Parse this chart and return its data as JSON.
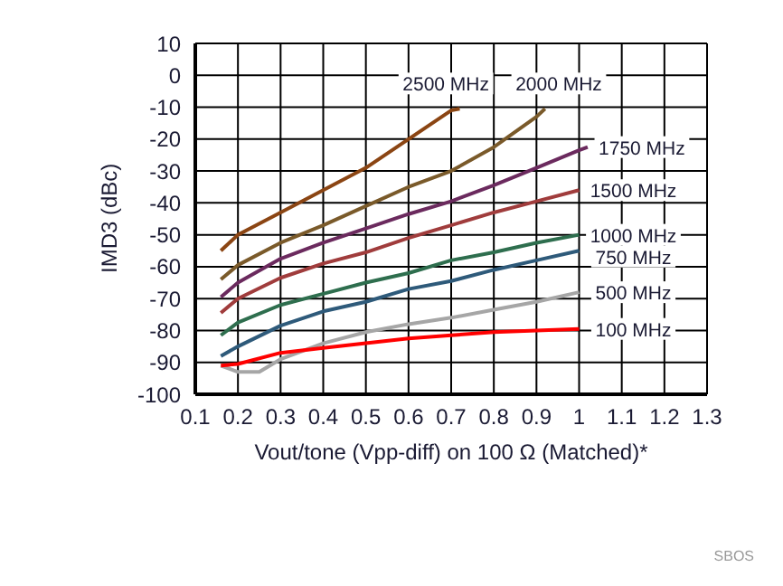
{
  "chart_data": {
    "type": "line",
    "xlabel": "Vout/tone (Vpp-diff) on 100 Ω (Matched)*",
    "ylabel": "IMD3 (dBc)",
    "xlim": [
      0.1,
      1.3
    ],
    "xticks": [
      0.1,
      0.2,
      0.3,
      0.4,
      0.5,
      0.6,
      0.7,
      0.8,
      0.9,
      1,
      1.1,
      1.2,
      1.3
    ],
    "ylim": [
      -100,
      10
    ],
    "yticks": [
      -100,
      -90,
      -80,
      -70,
      -60,
      -50,
      -40,
      -30,
      -20,
      -10,
      0,
      10
    ],
    "grid": true,
    "legend": false,
    "marker": "none",
    "line_style": "solid",
    "annotations": [
      "SBOS"
    ],
    "series": [
      {
        "name": "2500 MHz",
        "color": "#8b4513",
        "x": [
          0.16,
          0.2,
          0.3,
          0.4,
          0.5,
          0.6,
          0.7,
          0.72
        ],
        "values": [
          -55,
          -50,
          -43,
          -36,
          -29,
          -20,
          -11,
          -10.5
        ]
      },
      {
        "name": "2000 MHz",
        "color": "#7a5a2a",
        "x": [
          0.16,
          0.2,
          0.3,
          0.4,
          0.5,
          0.6,
          0.7,
          0.8,
          0.9,
          0.92
        ],
        "values": [
          -64,
          -59.5,
          -52.5,
          -47,
          -41,
          -35,
          -30,
          -22.5,
          -13,
          -10.5
        ]
      },
      {
        "name": "1750 MHz",
        "color": "#6b2a5e",
        "x": [
          0.16,
          0.2,
          0.3,
          0.4,
          0.5,
          0.6,
          0.7,
          0.8,
          0.9,
          1,
          1.02
        ],
        "values": [
          -69.5,
          -65,
          -57.5,
          -52.5,
          -48,
          -43.5,
          -39.5,
          -34.5,
          -29,
          -23.5,
          -22.5
        ]
      },
      {
        "name": "1500 MHz",
        "color": "#a03c3c",
        "x": [
          0.16,
          0.2,
          0.3,
          0.4,
          0.5,
          0.6,
          0.7,
          0.8,
          0.9,
          1
        ],
        "values": [
          -74.5,
          -70,
          -63.5,
          -59,
          -55.5,
          -51,
          -47,
          -43,
          -39.5,
          -36
        ]
      },
      {
        "name": "1000 MHz",
        "color": "#2e6e4e",
        "x": [
          0.16,
          0.2,
          0.3,
          0.4,
          0.5,
          0.6,
          0.7,
          0.8,
          0.9,
          1
        ],
        "values": [
          -81.5,
          -77.5,
          -72,
          -68.5,
          -65,
          -62,
          -58,
          -55.5,
          -52.5,
          -50
        ]
      },
      {
        "name": "750 MHz",
        "color": "#2e5a7a",
        "x": [
          0.16,
          0.2,
          0.3,
          0.4,
          0.5,
          0.6,
          0.7,
          0.8,
          0.9,
          1
        ],
        "values": [
          -88,
          -85,
          -78.5,
          -74,
          -71,
          -67,
          -64.5,
          -61,
          -58,
          -55
        ]
      },
      {
        "name": "500 MHz",
        "color": "#a6a6a6",
        "x": [
          0.16,
          0.2,
          0.25,
          0.3,
          0.4,
          0.5,
          0.6,
          0.7,
          0.8,
          0.9,
          1
        ],
        "values": [
          -91,
          -93,
          -93,
          -89,
          -84,
          -80.5,
          -78,
          -76,
          -73.5,
          -71,
          -68
        ]
      },
      {
        "name": "100 MHz",
        "color": "#ff0000",
        "x": [
          0.16,
          0.2,
          0.3,
          0.4,
          0.5,
          0.6,
          0.7,
          0.8,
          0.9,
          1
        ],
        "values": [
          -91,
          -90.5,
          -87,
          -85.5,
          -84,
          -82.5,
          -81.5,
          -80.5,
          -80,
          -79.5
        ]
      }
    ]
  }
}
